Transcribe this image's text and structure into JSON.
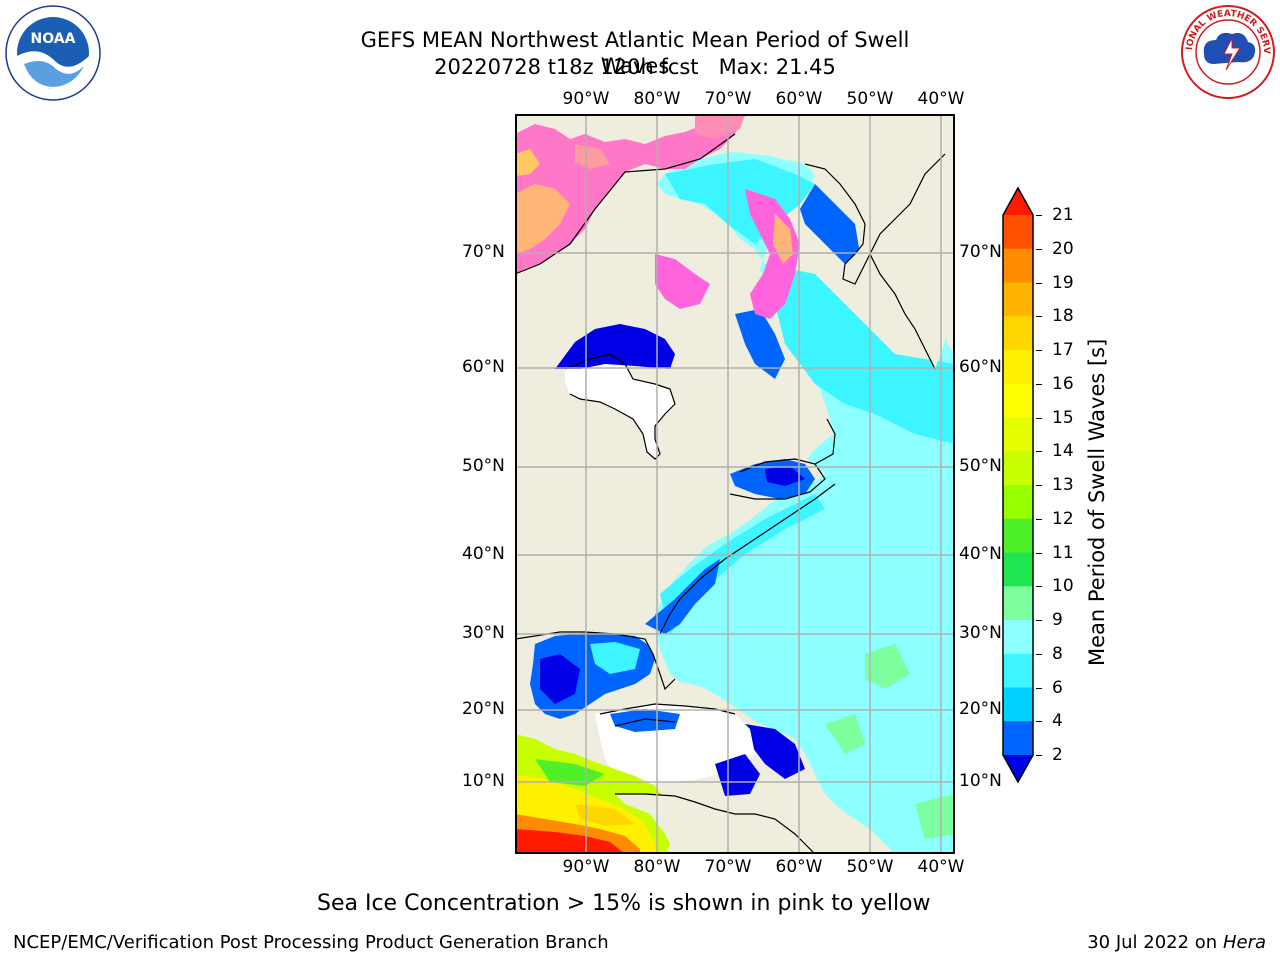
{
  "header": {
    "title_line1": "GEFS MEAN Northwest Atlantic Mean Period of Swell Waves",
    "title_line2": "20220728 t18z 120h fcst   Max: 21.45"
  },
  "logos": {
    "left": "noaa-logo",
    "left_text": "NOAA",
    "right": "nws-logo",
    "right_text": "NATIONAL WEATHER SERVICE"
  },
  "map": {
    "lon_labels": [
      "90°W",
      "80°W",
      "70°W",
      "60°W",
      "50°W",
      "40°W"
    ],
    "lat_labels": [
      "70°N",
      "60°N",
      "50°N",
      "40°N",
      "30°N",
      "20°N",
      "10°N"
    ],
    "colors": {
      "land": "#efedde",
      "grid": "#b0b0b0",
      "sea_ice_blank": "#ffffff"
    }
  },
  "colorbar": {
    "title": "Mean Period of Swell Waves [s]",
    "ticks": [
      "21",
      "20",
      "19",
      "18",
      "17",
      "16",
      "15",
      "14",
      "13",
      "12",
      "11",
      "10",
      "9",
      "8",
      "6",
      "4",
      "2"
    ],
    "colors": [
      "#ff1a00",
      "#ff5000",
      "#ff8c00",
      "#ffb400",
      "#ffd700",
      "#fff000",
      "#ffff00",
      "#e6ff00",
      "#c8ff00",
      "#96ff00",
      "#50f028",
      "#1ee650",
      "#7dffa0",
      "#8cffff",
      "#3cf5ff",
      "#00d2ff",
      "#0064ff",
      "#0000e6"
    ]
  },
  "notes": {
    "sea_ice": "Sea Ice Concentration > 15% is shown in pink to yellow"
  },
  "footer": {
    "left": "NCEP/EMC/Verification Post Processing Product Generation Branch",
    "date": "30 Jul 2022 on ",
    "host": "Hera"
  }
}
